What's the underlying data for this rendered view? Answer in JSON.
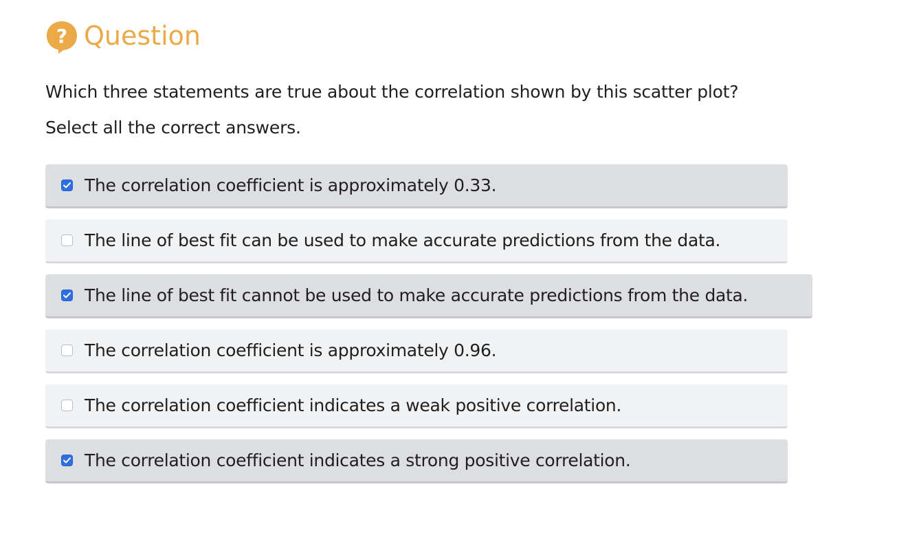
{
  "header": {
    "title": "Question",
    "icon": "question-bubble-icon",
    "accent_color": "#eba947"
  },
  "question": {
    "prompt": "Which three statements are true about the correlation shown by this scatter plot?",
    "instruction": "Select all the correct answers."
  },
  "options": [
    {
      "label": "The correlation coefficient is approximately 0.33.",
      "checked": true
    },
    {
      "label": "The line of best fit can be used to make accurate predictions from the data.",
      "checked": false
    },
    {
      "label": "The line of best fit cannot be used to make accurate predictions from the data.",
      "checked": true
    },
    {
      "label": "The correlation coefficient is approximately 0.96.",
      "checked": false
    },
    {
      "label": "The correlation coefficient indicates a weak positive correlation.",
      "checked": false
    },
    {
      "label": "The correlation coefficient indicates a strong positive correlation.",
      "checked": true
    }
  ],
  "colors": {
    "checkbox_checked": "#2f6fe4",
    "option_checked_bg": "#dddee1",
    "option_unchecked_bg": "#f1f2f4"
  }
}
